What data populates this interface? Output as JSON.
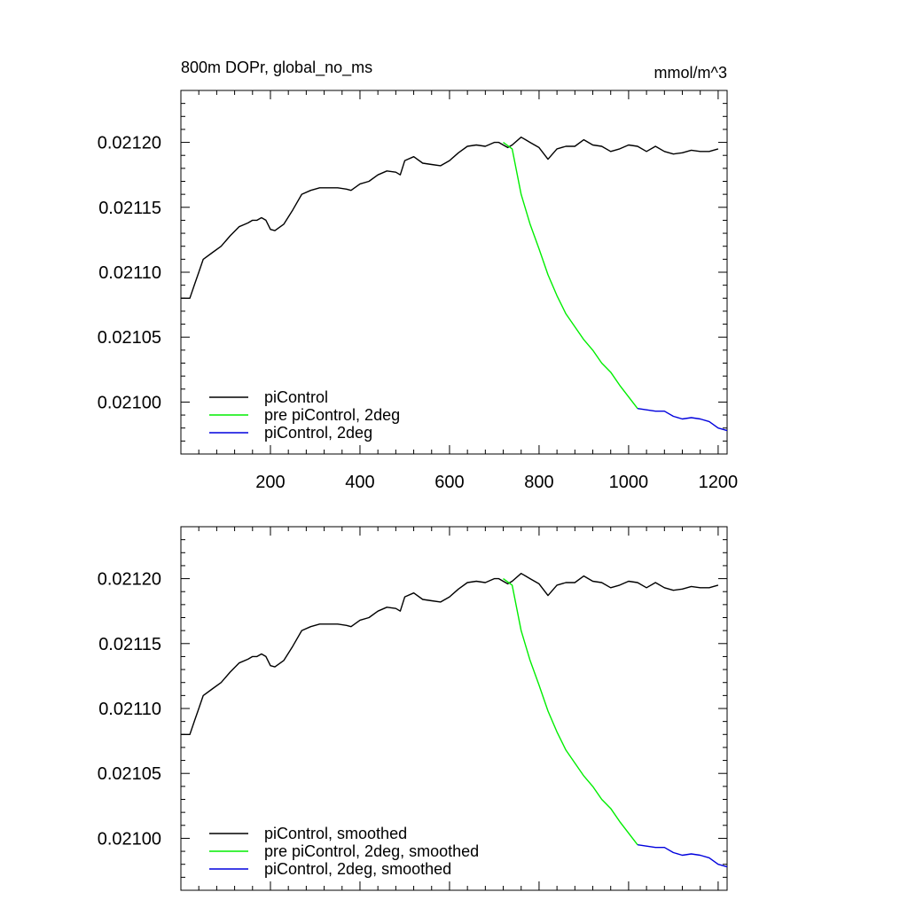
{
  "chart_data": [
    {
      "type": "line",
      "title": "800m DOPr, global_no_ms",
      "units": "mmol/m^3",
      "xlim": [
        0,
        1220
      ],
      "ylim": [
        0.02096,
        0.02124
      ],
      "xticks": [
        200,
        400,
        600,
        800,
        1000,
        1200
      ],
      "xtick_labels": [
        "200",
        "400",
        "600",
        "800",
        "1000",
        "1200"
      ],
      "yticks": [
        0.021,
        0.02105,
        0.0211,
        0.02115,
        0.0212
      ],
      "ytick_labels": [
        "0.02100",
        "0.02105",
        "0.02110",
        "0.02115",
        "0.02120"
      ],
      "show_xtick_labels": true,
      "legend_position": "bottom-left",
      "series": [
        {
          "name": "piControl",
          "color": "#000000",
          "x": [
            1,
            20,
            30,
            40,
            50,
            70,
            90,
            110,
            130,
            150,
            160,
            170,
            180,
            190,
            200,
            210,
            230,
            250,
            270,
            290,
            310,
            330,
            350,
            370,
            380,
            400,
            420,
            440,
            460,
            480,
            490,
            500,
            520,
            540,
            560,
            580,
            600,
            620,
            640,
            660,
            680,
            700,
            710,
            720,
            730,
            740,
            760,
            770,
            780,
            800,
            820,
            840,
            860,
            880,
            900,
            920,
            940,
            960,
            980,
            1000,
            1020,
            1040,
            1060,
            1080,
            1100,
            1120,
            1140,
            1160,
            1180,
            1200
          ],
          "y": [
            0.02108,
            0.02108,
            0.02109,
            0.0211,
            0.02111,
            0.021115,
            0.02112,
            0.021128,
            0.021135,
            0.021138,
            0.02114,
            0.02114,
            0.021142,
            0.02114,
            0.021133,
            0.021132,
            0.021137,
            0.021148,
            0.02116,
            0.021163,
            0.021165,
            0.021165,
            0.021165,
            0.021164,
            0.021163,
            0.021168,
            0.02117,
            0.021175,
            0.021178,
            0.021177,
            0.021175,
            0.021186,
            0.021189,
            0.021184,
            0.021183,
            0.021182,
            0.021186,
            0.021192,
            0.021197,
            0.021198,
            0.021197,
            0.0212,
            0.0212,
            0.021198,
            0.021196,
            0.021198,
            0.021204,
            0.021202,
            0.0212,
            0.021196,
            0.021187,
            0.021195,
            0.021197,
            0.021197,
            0.021202,
            0.021198,
            0.021197,
            0.021193,
            0.021195,
            0.021198,
            0.021197,
            0.021193,
            0.021197,
            0.021193,
            0.021191,
            0.021192,
            0.021194,
            0.021193,
            0.021193,
            0.021195
          ]
        },
        {
          "name": "pre piControl, 2deg",
          "color": "#00ee00",
          "x": [
            720,
            740,
            760,
            780,
            800,
            820,
            840,
            860,
            880,
            900,
            920,
            940,
            960,
            980,
            1000,
            1020
          ],
          "y": [
            0.0212,
            0.021195,
            0.02116,
            0.021137,
            0.021118,
            0.021098,
            0.021082,
            0.021068,
            0.021058,
            0.021048,
            0.02104,
            0.02103,
            0.021023,
            0.021013,
            0.021004,
            0.020995
          ]
        },
        {
          "name": "piControl, 2deg",
          "color": "#0000dd",
          "x": [
            1020,
            1040,
            1060,
            1080,
            1100,
            1120,
            1140,
            1160,
            1180,
            1200,
            1220
          ],
          "y": [
            0.020995,
            0.020994,
            0.020993,
            0.020993,
            0.020989,
            0.020987,
            0.020988,
            0.020987,
            0.020985,
            0.02098,
            0.020978
          ]
        }
      ]
    },
    {
      "type": "line",
      "title": "",
      "units": "",
      "xlim": [
        0,
        1220
      ],
      "ylim": [
        0.02096,
        0.02124
      ],
      "xticks": [
        200,
        400,
        600,
        800,
        1000,
        1200
      ],
      "xtick_labels": [],
      "yticks": [
        0.021,
        0.02105,
        0.0211,
        0.02115,
        0.0212
      ],
      "ytick_labels": [
        "0.02100",
        "0.02105",
        "0.02110",
        "0.02115",
        "0.02120"
      ],
      "show_xtick_labels": false,
      "legend_position": "bottom-left",
      "series": [
        {
          "name": "piControl, smoothed",
          "color": "#000000",
          "x": [
            1,
            20,
            30,
            40,
            50,
            70,
            90,
            110,
            130,
            150,
            160,
            170,
            180,
            190,
            200,
            210,
            230,
            250,
            270,
            290,
            310,
            330,
            350,
            370,
            380,
            400,
            420,
            440,
            460,
            480,
            490,
            500,
            520,
            540,
            560,
            580,
            600,
            620,
            640,
            660,
            680,
            700,
            710,
            720,
            730,
            740,
            760,
            770,
            780,
            800,
            820,
            840,
            860,
            880,
            900,
            920,
            940,
            960,
            980,
            1000,
            1020,
            1040,
            1060,
            1080,
            1100,
            1120,
            1140,
            1160,
            1180,
            1200
          ],
          "y": [
            0.02108,
            0.02108,
            0.02109,
            0.0211,
            0.02111,
            0.021115,
            0.02112,
            0.021128,
            0.021135,
            0.021138,
            0.02114,
            0.02114,
            0.021142,
            0.02114,
            0.021133,
            0.021132,
            0.021137,
            0.021148,
            0.02116,
            0.021163,
            0.021165,
            0.021165,
            0.021165,
            0.021164,
            0.021163,
            0.021168,
            0.02117,
            0.021175,
            0.021178,
            0.021177,
            0.021175,
            0.021186,
            0.021189,
            0.021184,
            0.021183,
            0.021182,
            0.021186,
            0.021192,
            0.021197,
            0.021198,
            0.021197,
            0.0212,
            0.0212,
            0.021198,
            0.021196,
            0.021198,
            0.021204,
            0.021202,
            0.0212,
            0.021196,
            0.021187,
            0.021195,
            0.021197,
            0.021197,
            0.021202,
            0.021198,
            0.021197,
            0.021193,
            0.021195,
            0.021198,
            0.021197,
            0.021193,
            0.021197,
            0.021193,
            0.021191,
            0.021192,
            0.021194,
            0.021193,
            0.021193,
            0.021195
          ]
        },
        {
          "name": "pre piControl, 2deg, smoothed",
          "color": "#00ee00",
          "x": [
            720,
            740,
            760,
            780,
            800,
            820,
            840,
            860,
            880,
            900,
            920,
            940,
            960,
            980,
            1000,
            1020
          ],
          "y": [
            0.0212,
            0.021195,
            0.02116,
            0.021137,
            0.021118,
            0.021098,
            0.021082,
            0.021068,
            0.021058,
            0.021048,
            0.02104,
            0.02103,
            0.021023,
            0.021013,
            0.021004,
            0.020995
          ]
        },
        {
          "name": "piControl, 2deg, smoothed",
          "color": "#0000dd",
          "x": [
            1020,
            1040,
            1060,
            1080,
            1100,
            1120,
            1140,
            1160,
            1180,
            1200,
            1220
          ],
          "y": [
            0.020995,
            0.020994,
            0.020993,
            0.020993,
            0.020989,
            0.020987,
            0.020988,
            0.020987,
            0.020985,
            0.02098,
            0.020978
          ]
        }
      ]
    }
  ]
}
